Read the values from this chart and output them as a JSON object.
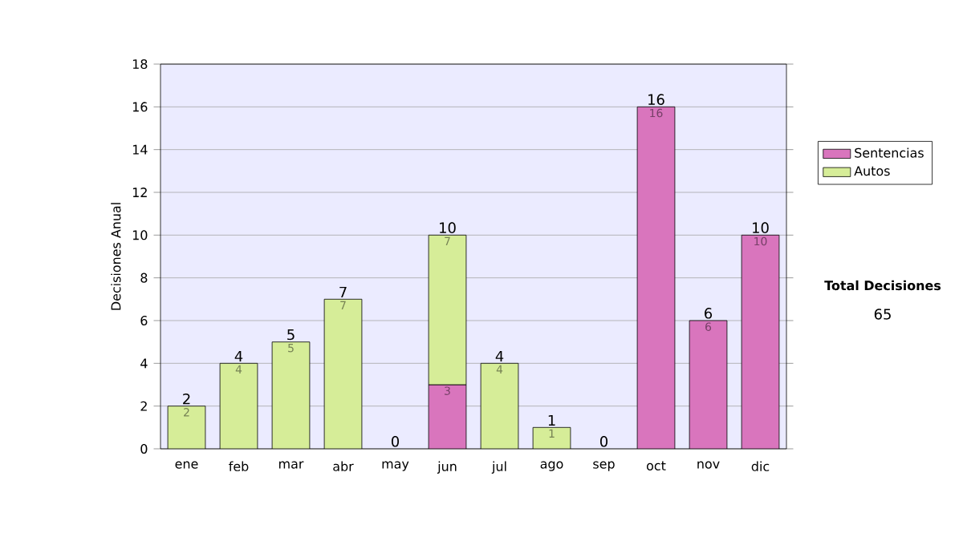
{
  "chart_data": {
    "type": "bar",
    "stacked": true,
    "ylabel": "Decisiones Anual",
    "categories": [
      "ene",
      "feb",
      "mar",
      "abr",
      "may",
      "jun",
      "jul",
      "ago",
      "sep",
      "oct",
      "nov",
      "dic"
    ],
    "series": [
      {
        "name": "Sentencias",
        "color": "#d975bd",
        "values": [
          null,
          null,
          null,
          null,
          null,
          3,
          null,
          null,
          null,
          16,
          6,
          10
        ]
      },
      {
        "name": "Autos",
        "color": "#d6ed98",
        "values": [
          2,
          4,
          5,
          7,
          null,
          7,
          4,
          1,
          null,
          null,
          null,
          null
        ]
      }
    ],
    "totals": [
      "2",
      "4",
      "5",
      "7",
      "0",
      "10",
      "4",
      "1",
      "0",
      "16",
      "6",
      "10"
    ],
    "data_labels": true,
    "ylim": [
      0,
      18
    ],
    "yticks": [
      0,
      2,
      4,
      6,
      8,
      10,
      12,
      14,
      16,
      18
    ],
    "grid": "y",
    "legend": "right",
    "annotations": [
      "Total Decisiones",
      "65"
    ]
  }
}
